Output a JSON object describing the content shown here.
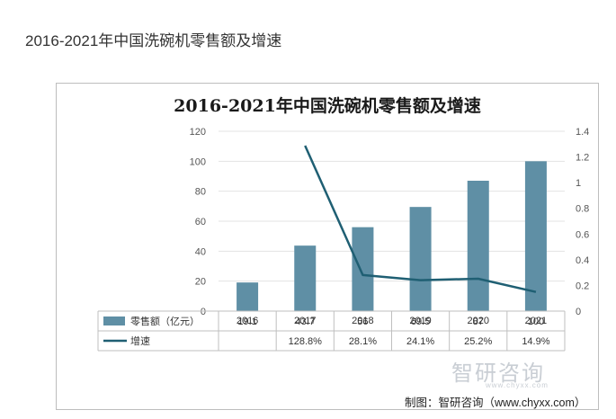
{
  "page": {
    "heading": "2016-2021年中国洗碗机零售额及增速"
  },
  "chart_data": {
    "type": "bar",
    "title": "2016-2021年中国洗碗机零售额及增速",
    "categories": [
      "2016",
      "2017",
      "2018",
      "2019",
      "2020",
      "2021"
    ],
    "series": [
      {
        "name": "零售额（亿元）",
        "type": "bar",
        "axis": "left",
        "values": [
          19.1,
          43.7,
          56,
          69.5,
          87,
          100
        ],
        "labels": [
          "19.1",
          "43.7",
          "56",
          "69.5",
          "87",
          "100"
        ],
        "color": "#5f8fa5"
      },
      {
        "name": "增速",
        "type": "line",
        "axis": "right",
        "values": [
          null,
          1.288,
          0.281,
          0.241,
          0.252,
          0.149
        ],
        "labels": [
          "",
          "128.8%",
          "28.1%",
          "24.1%",
          "25.2%",
          "14.9%"
        ],
        "color": "#1f5f73"
      }
    ],
    "y_left": {
      "range": [
        0,
        120
      ],
      "ticks": [
        "0",
        "20",
        "40",
        "60",
        "80",
        "100",
        "120"
      ]
    },
    "y_right": {
      "range": [
        0,
        1.4
      ],
      "ticks": [
        "0",
        "0.2",
        "0.4",
        "0.6",
        "0.8",
        "1",
        "1.2",
        "1.4"
      ]
    },
    "legend": "data-table"
  },
  "watermark": {
    "text": "智研咨询",
    "url": "www.chyxx.com"
  },
  "source": "制图：智研咨询（www.chyxx.com）"
}
